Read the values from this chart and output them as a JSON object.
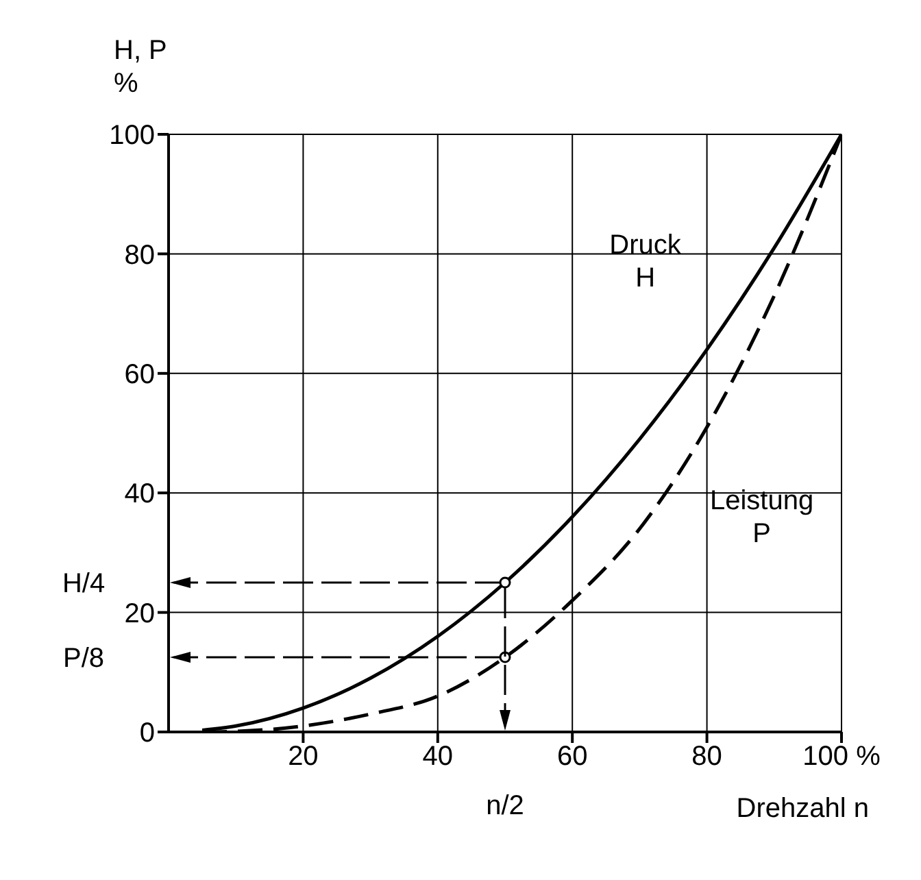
{
  "chart_data": {
    "type": "line",
    "xlabel": "Drehzahl n",
    "ylabel": "H, P\n%",
    "x": [
      5,
      10,
      20,
      30,
      40,
      50,
      60,
      70,
      80,
      90,
      100
    ],
    "series": [
      {
        "name": "Druck H",
        "color": "#000000",
        "line_style": "solid",
        "values": [
          0.3,
          1,
          4,
          9,
          16,
          25,
          36,
          49,
          64,
          81,
          100
        ]
      },
      {
        "name": "Leistung P",
        "color": "#000000",
        "line_style": "dashed",
        "values": [
          0,
          0.1,
          1,
          3,
          6,
          12.5,
          22,
          34,
          51,
          73,
          100
        ]
      }
    ],
    "xlim": [
      0,
      100
    ],
    "ylim": [
      0,
      100
    ],
    "xticks": [
      20,
      40,
      60,
      80,
      {
        "value": 100,
        "label": "100 %"
      }
    ],
    "yticks": [
      0,
      20,
      40,
      60,
      80,
      100
    ],
    "grid": true,
    "marker": "none",
    "annotations": [
      "H/4",
      "P/8",
      "n/2"
    ]
  }
}
